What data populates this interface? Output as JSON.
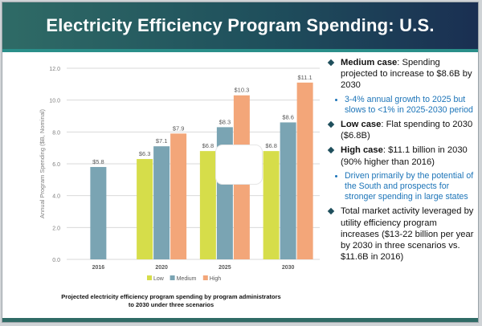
{
  "slide": {
    "title": "Electricity Efficiency Program Spending: U.S.",
    "caption_line1": "Projected electricity efficiency program spending by program administrators",
    "caption_line2": "to 2030 under three scenarios"
  },
  "bullets": [
    {
      "lead": "Medium case",
      "text": ": Spending projected to increase to $8.6B by 2030"
    },
    {
      "sub": "3-4% annual growth to 2025 but slows to <1% in 2025-2030 period"
    },
    {
      "lead": "Low case",
      "text": ": Flat spending to 2030 ($6.8B)"
    },
    {
      "lead": "High case",
      "text": ": $11.1 billion in 2030 (90% higher than 2016)"
    },
    {
      "sub": "Driven primarily by the potential of the South and prospects for stronger spending in large states"
    },
    {
      "lead": "",
      "text": "Total market activity leveraged by utility efficiency program increases ($13-22 billion per year by 2030 in three scenarios vs. $11.6B in 2016)"
    }
  ],
  "colors": {
    "low": "#d6dd4a",
    "medium": "#7aa4b3",
    "high": "#f3a679",
    "grid": "#d9d9d9",
    "axis_text": "#7f7f7f"
  },
  "chart_data": {
    "type": "bar",
    "ylabel": "Annual Program Spending ($B, Nominal)",
    "ylim": [
      0,
      12
    ],
    "yticks": [
      "0.0",
      "2.0",
      "4.0",
      "6.0",
      "8.0",
      "10.0",
      "12.0"
    ],
    "grid": true,
    "legend_placement": "bottom",
    "categories": [
      "2016",
      "2020",
      "2025",
      "2030"
    ],
    "series": [
      {
        "name": "Low",
        "values": [
          null,
          6.3,
          6.8,
          6.8
        ],
        "labels": [
          "",
          "$6.3",
          "$6.8",
          "$6.8"
        ]
      },
      {
        "name": "Medium",
        "values": [
          5.8,
          7.1,
          8.3,
          8.6
        ],
        "labels": [
          "$5.8",
          "$7.1",
          "$8.3",
          "$8.6"
        ]
      },
      {
        "name": "High",
        "values": [
          null,
          7.9,
          10.3,
          11.1
        ],
        "labels": [
          "",
          "$7.9",
          "$10.3",
          "$11.1"
        ]
      }
    ]
  }
}
